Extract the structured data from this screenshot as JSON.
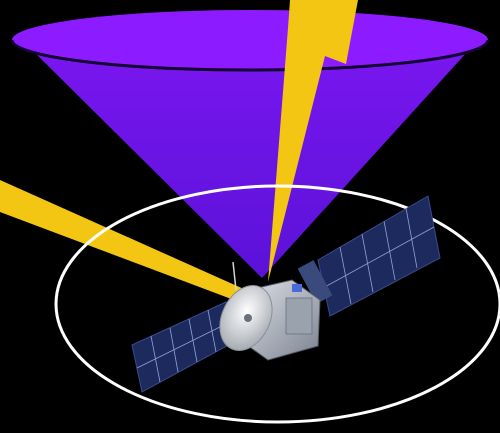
{
  "colors": {
    "background": "#000000",
    "cone_top": "#7a16f0",
    "cone_bottom": "#5a12d8",
    "cone_rim": "#8c1cff",
    "beam": "#f2c613",
    "orbit_ring": "#ffffff",
    "solar_panel": "#1d2a5e",
    "solar_grid": "#8fa2d8",
    "body_metal": "#c9ced6",
    "dish": "#e9ecef"
  },
  "elements": {
    "cone": "sensor-cone",
    "beams": [
      "lightning-beam-top",
      "lightning-beam-left"
    ],
    "ring": "orbit-ring",
    "craft": "spacecraft"
  }
}
